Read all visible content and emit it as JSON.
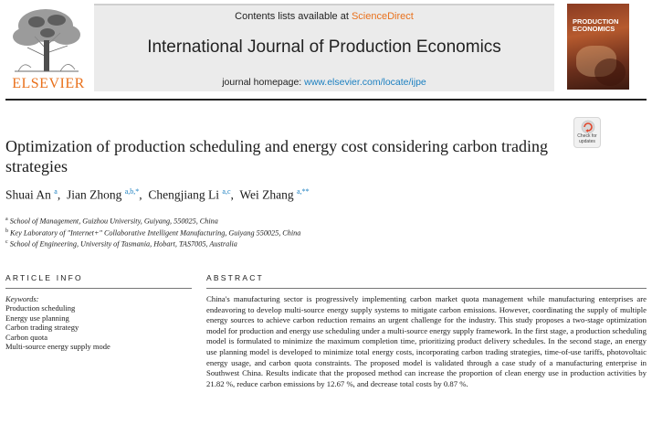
{
  "header": {
    "contents_prefix": "Contents lists available at ",
    "contents_link": "ScienceDirect",
    "journal_title": "International Journal of Production Economics",
    "homepage_prefix": "journal homepage: ",
    "homepage_url": "www.elsevier.com/locate/ijpe",
    "publisher": "ELSEVIER",
    "cover_line1": "PRODUCTION",
    "cover_line2": "ECONOMICS",
    "accent_color": "#e9711c",
    "link_color": "#1a7fc0"
  },
  "check_updates": {
    "label_line1": "Check for",
    "label_line2": "updates"
  },
  "article": {
    "title": "Optimization of production scheduling and energy cost considering carbon trading strategies",
    "authors": [
      {
        "name": "Shuai An",
        "sup": "a"
      },
      {
        "name": "Jian Zhong",
        "sup": "a,b,*"
      },
      {
        "name": "Chengjiang Li",
        "sup": "a,c"
      },
      {
        "name": "Wei Zhang",
        "sup": "a,**"
      }
    ],
    "affiliations": [
      {
        "sup": "a",
        "text": "School of Management, Guizhou University, Guiyang, 550025, China"
      },
      {
        "sup": "b",
        "text": "Key Laboratory of \"Internet+\" Collaborative Intelligent Manufacturing, Guiyang 550025, China"
      },
      {
        "sup": "c",
        "text": "School of Engineering, University of Tasmania, Hobart, TAS7005, Australia"
      }
    ]
  },
  "article_info": {
    "heading": "ARTICLE INFO",
    "keywords_label": "Keywords:",
    "keywords": [
      "Production scheduling",
      "Energy use planning",
      "Carbon trading strategy",
      "Carbon quota",
      "Multi-source energy supply mode"
    ]
  },
  "abstract": {
    "heading": "ABSTRACT",
    "text": "China's manufacturing sector is progressively implementing carbon market quota management while manufacturing enterprises are endeavoring to develop multi-source energy supply systems to mitigate carbon emissions. However, coordinating the supply of multiple energy sources to achieve carbon reduction remains an urgent challenge for the industry. This study proposes a two-stage optimization model for production and energy use scheduling under a multi-source energy supply framework. In the first stage, a production scheduling model is formulated to minimize the maximum completion time, prioritizing product delivery schedules. In the second stage, an energy use planning model is developed to minimize total energy costs, incorporating carbon trading strategies, time-of-use tariffs, photovoltaic energy usage, and carbon quota constraints. The proposed model is validated through a case study of a manufacturing enterprise in Southwest China. Results indicate that the proposed method can increase the proportion of clean energy use in production activities by 21.82 %, reduce carbon emissions by 12.67 %, and decrease total costs by 0.87 %."
  }
}
